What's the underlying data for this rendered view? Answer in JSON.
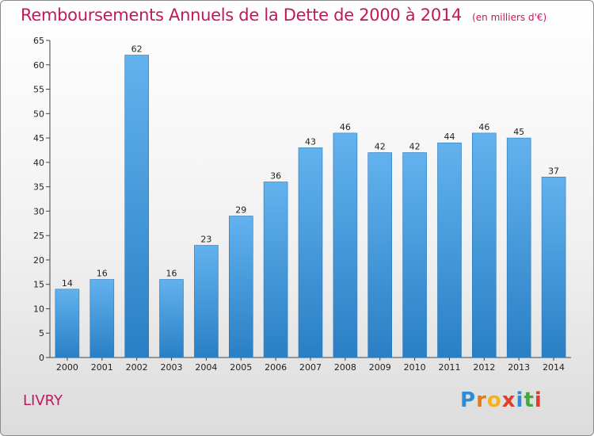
{
  "header": {
    "title": "Remboursements Annuels de la Dette de 2000 à 2014",
    "unit": "(en milliers d'€)"
  },
  "footer": {
    "commune": "LIVRY",
    "logo_letters": [
      "P",
      "r",
      "o",
      "x",
      "i",
      "t",
      "i"
    ],
    "logo_colors": [
      "#2e8bd8",
      "#e8791a",
      "#f2b21c",
      "#e23b2a",
      "#2e8bd8",
      "#43a844",
      "#e23b2a"
    ]
  },
  "chart_data": {
    "type": "bar",
    "title": "Remboursements Annuels de la Dette de 2000 à 2014",
    "xlabel": "",
    "ylabel": "",
    "categories": [
      "2000",
      "2001",
      "2002",
      "2003",
      "2004",
      "2005",
      "2006",
      "2007",
      "2008",
      "2009",
      "2010",
      "2011",
      "2012",
      "2013",
      "2014"
    ],
    "values": [
      14,
      16,
      62,
      16,
      23,
      29,
      36,
      43,
      46,
      42,
      42,
      44,
      46,
      45,
      37
    ],
    "ylim": [
      0,
      65
    ],
    "yticks": [
      0,
      5,
      10,
      15,
      20,
      25,
      30,
      35,
      40,
      45,
      50,
      55,
      60,
      65
    ],
    "grid": false,
    "bar_color": "#3a8fd6",
    "data_labels": true
  }
}
